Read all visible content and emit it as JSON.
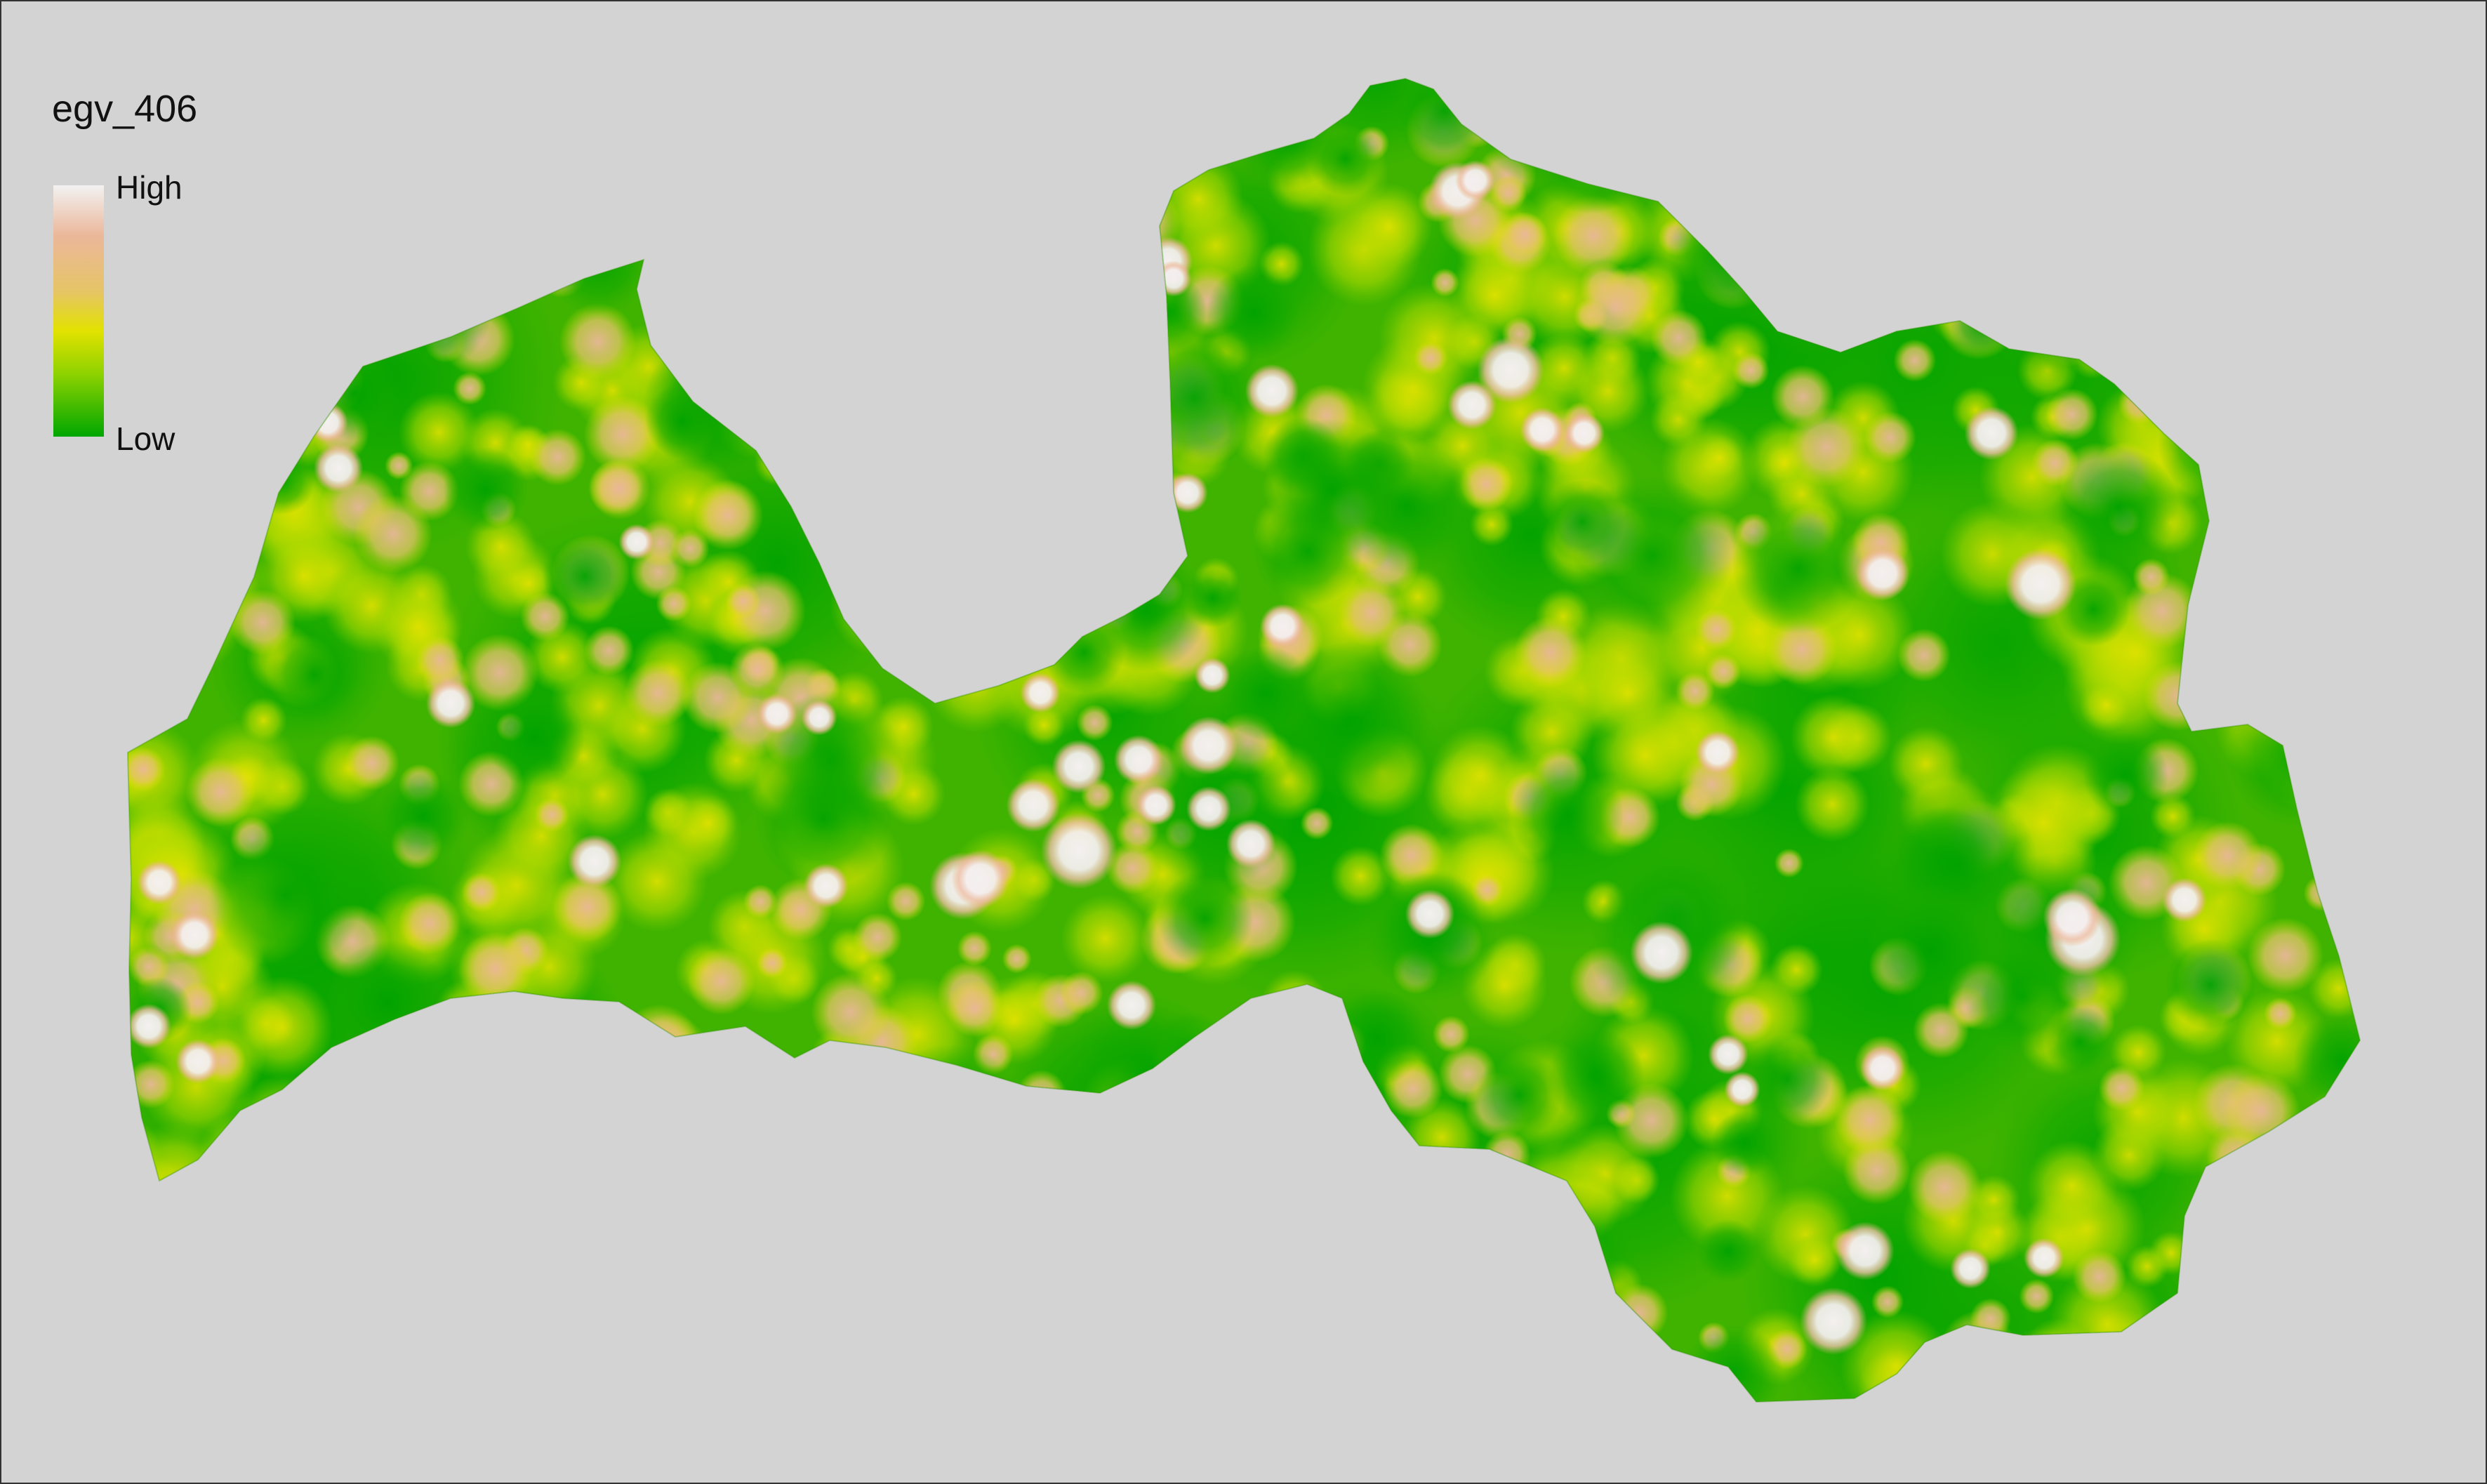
{
  "legend": {
    "title": "egv_406",
    "high_label": "High",
    "low_label": "Low",
    "colors": [
      "#f2f2f2",
      "#ebb79a",
      "#e6c467",
      "#e2e200",
      "#8ed200",
      "#00a600"
    ]
  },
  "map": {
    "background_color": "#d3d3d3",
    "base_color": "#3fb300"
  }
}
